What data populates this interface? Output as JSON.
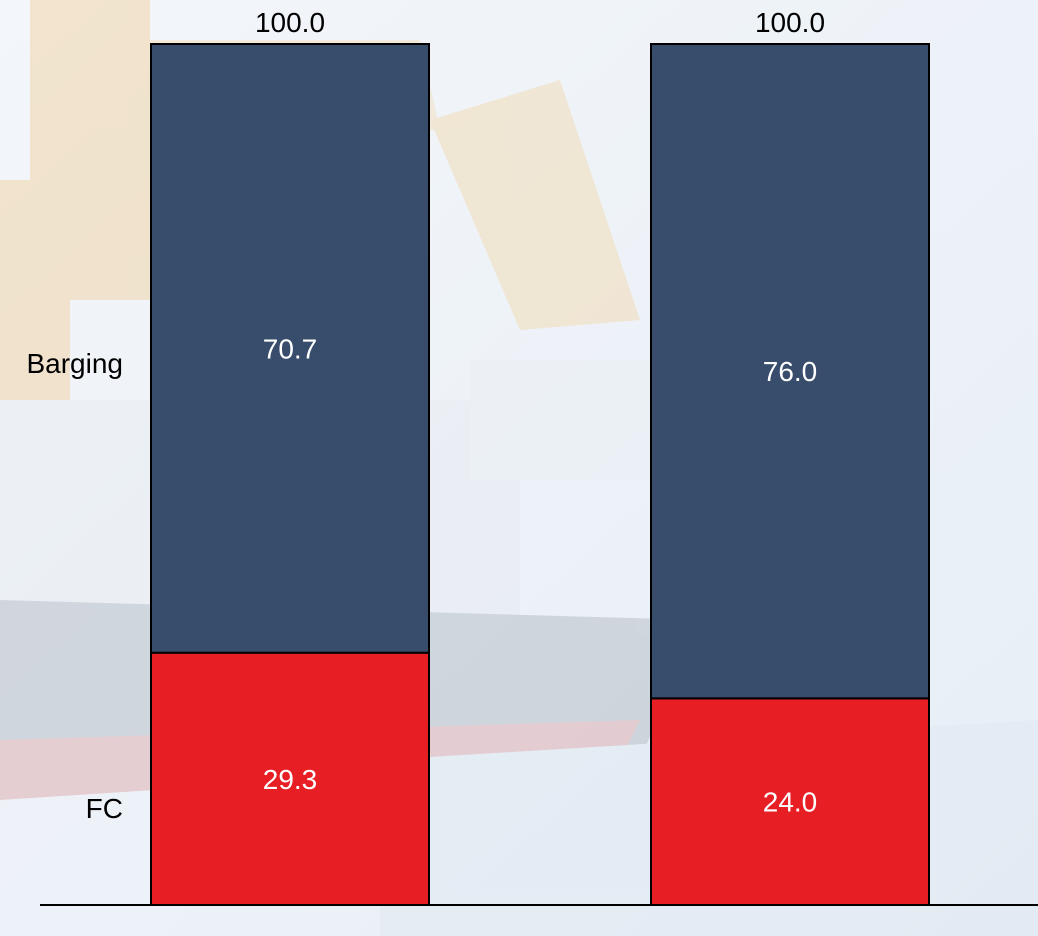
{
  "chart_data": {
    "type": "bar",
    "stacked": true,
    "categories": [
      "",
      ""
    ],
    "series": [
      {
        "name": "FC",
        "values": [
          29.3,
          24.0
        ],
        "color": "#e81e25"
      },
      {
        "name": "Barging",
        "values": [
          70.7,
          76.0
        ],
        "color": "#384c6b"
      }
    ],
    "totals": [
      100.0,
      100.0
    ],
    "value_labels": {
      "FC": [
        "29.3",
        "24.0"
      ],
      "Barging": [
        "70.7",
        "76.0"
      ]
    },
    "total_labels": [
      "100.0",
      "100.0"
    ],
    "row_labels": [
      "Barging",
      "FC"
    ],
    "ylim": [
      0,
      100
    ],
    "grid": false,
    "legend": "left (row labels)",
    "background": "faded ship photograph watermark"
  }
}
